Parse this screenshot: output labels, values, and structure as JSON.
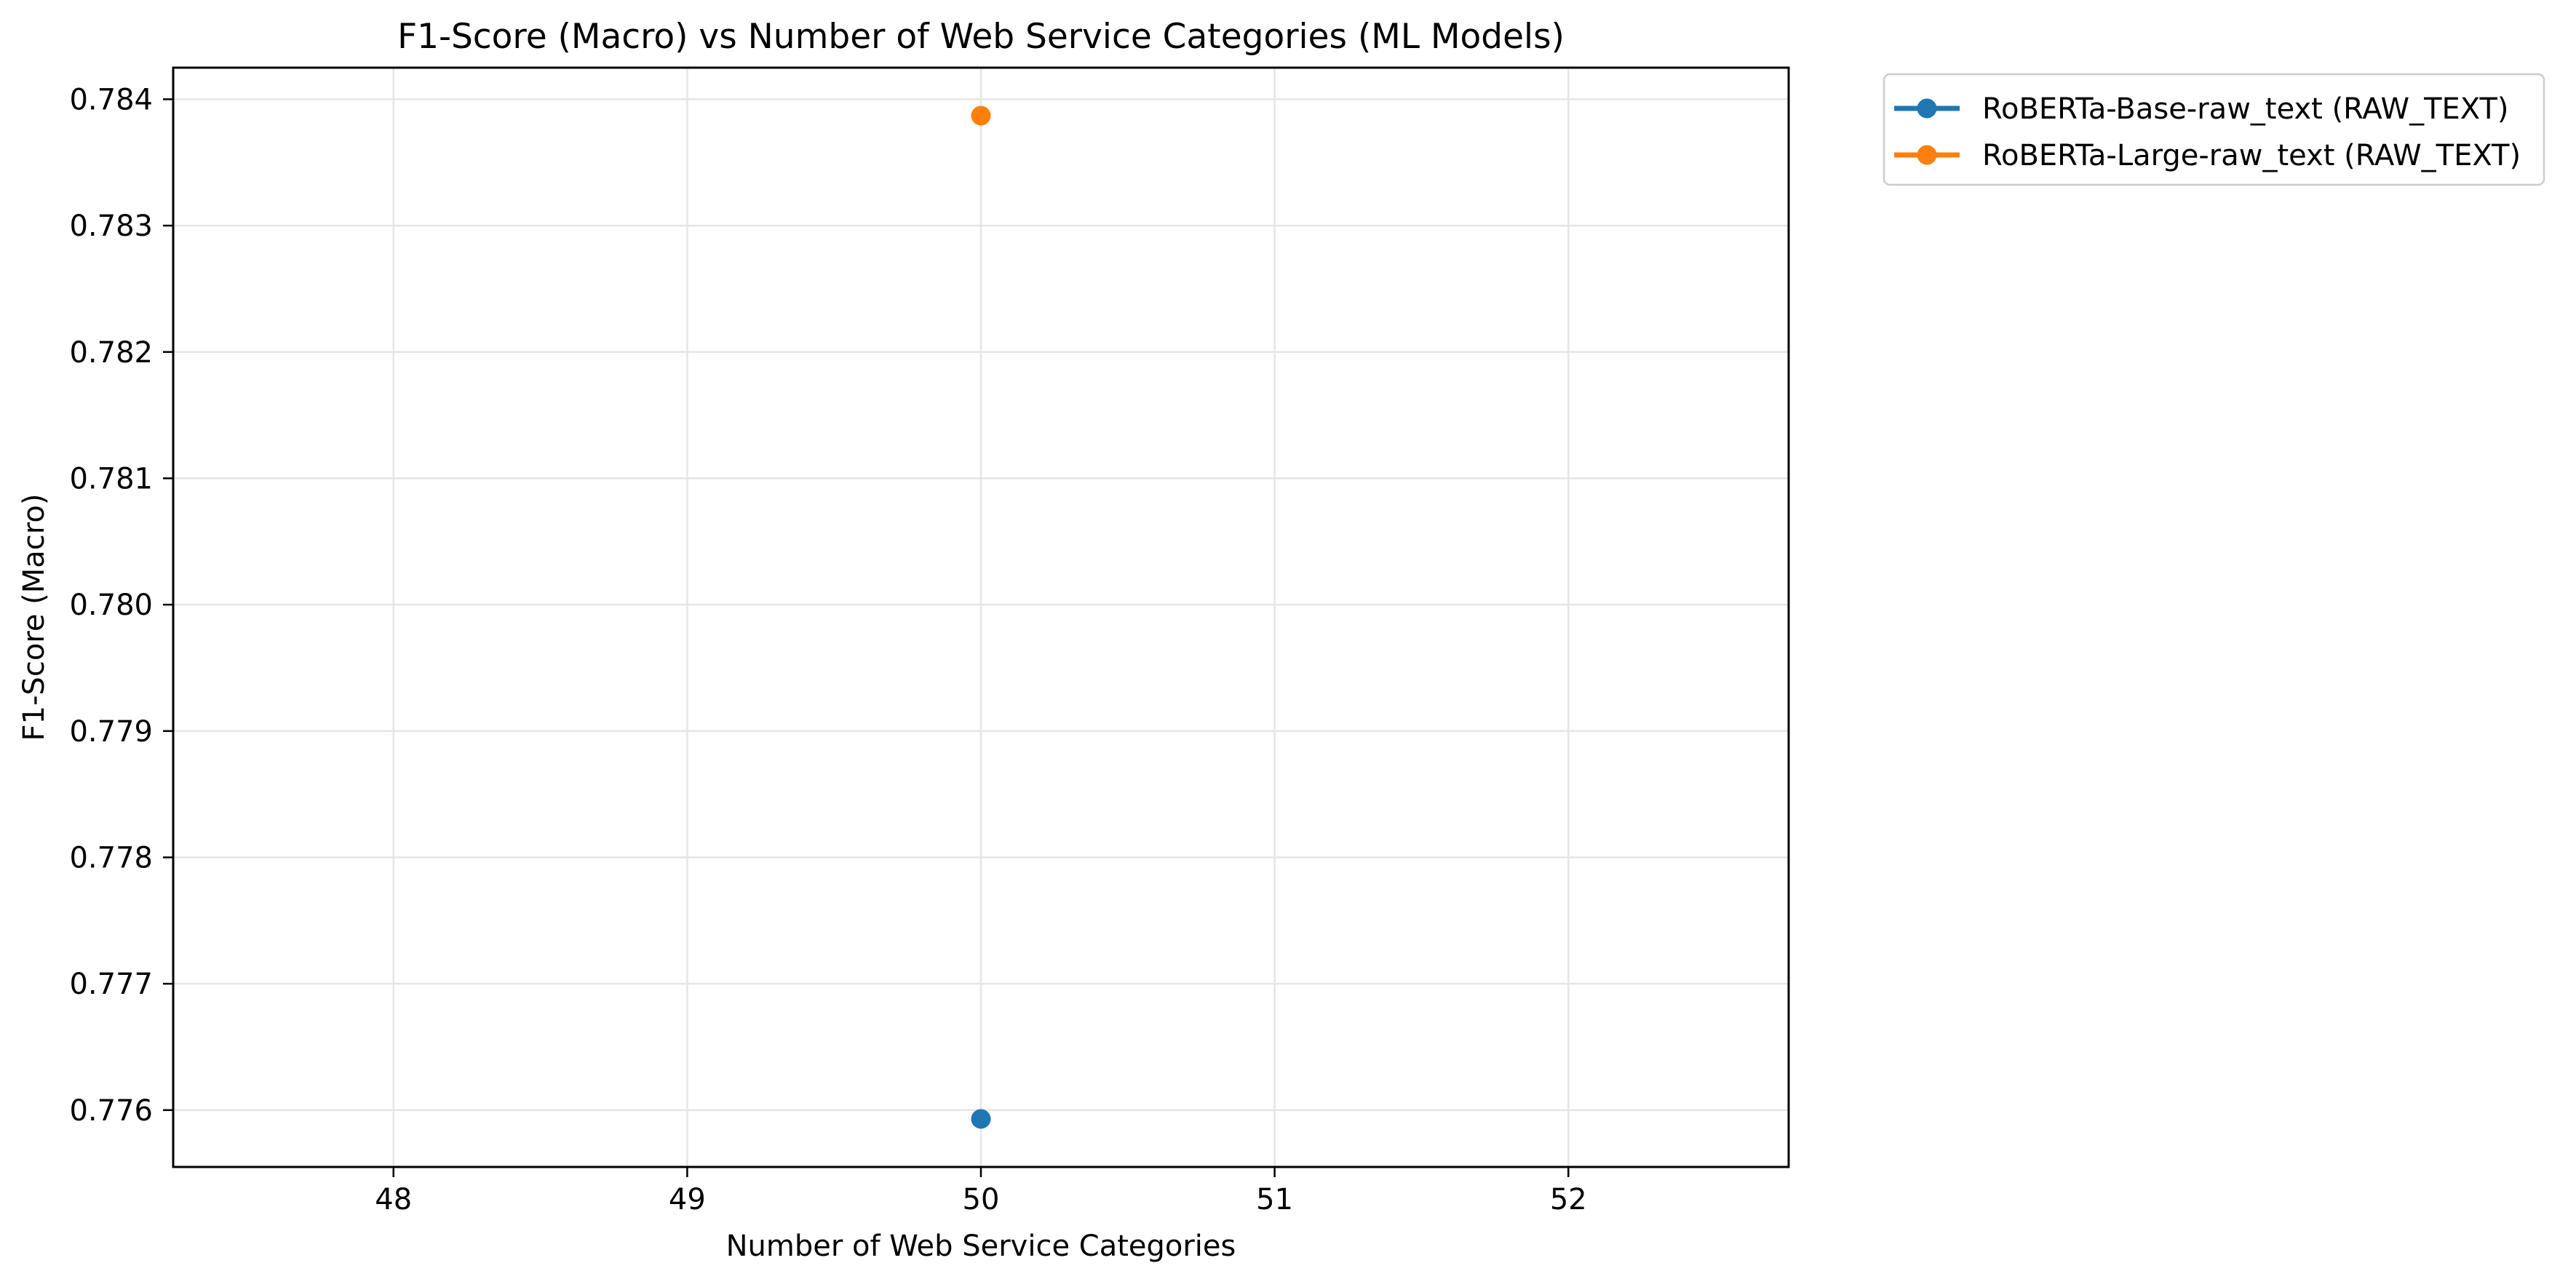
{
  "chart_data": {
    "type": "scatter",
    "title": "F1-Score (Macro) vs Number of Web Service Categories (ML Models)",
    "xlabel": "Number of Web Service Categories",
    "ylabel": "F1-Score (Macro)",
    "xlim": [
      47.25,
      52.75
    ],
    "ylim": [
      0.77555,
      0.78425
    ],
    "x_ticks": [
      48,
      49,
      50,
      51,
      52
    ],
    "x_tick_labels": [
      "48",
      "49",
      "50",
      "51",
      "52"
    ],
    "y_ticks": [
      0.776,
      0.777,
      0.778,
      0.779,
      0.78,
      0.781,
      0.782,
      0.783,
      0.784
    ],
    "y_tick_labels": [
      "0.776",
      "0.777",
      "0.778",
      "0.779",
      "0.780",
      "0.781",
      "0.782",
      "0.783",
      "0.784"
    ],
    "grid": true,
    "legend_position": "outside-top-right",
    "series": [
      {
        "name": "RoBERTa-Base-raw_text (RAW_TEXT)",
        "color": "#1f77b4",
        "marker": "circle",
        "points": [
          {
            "x": 50,
            "y": 0.77593
          }
        ]
      },
      {
        "name": "RoBERTa-Large-raw_text (RAW_TEXT)",
        "color": "#ff7f0e",
        "marker": "circle",
        "points": [
          {
            "x": 50,
            "y": 0.78387
          }
        ]
      }
    ]
  }
}
